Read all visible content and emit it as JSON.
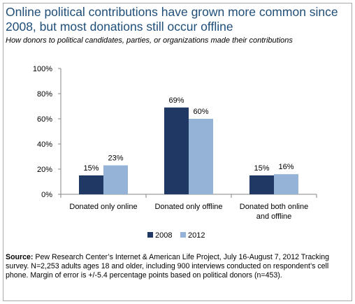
{
  "chart_data": {
    "type": "bar",
    "title": "Online political contributions have grown more common since 2008, but most donations still occur offline",
    "subtitle": "How donors to political candidates, parties, or organizations made their contributions",
    "categories": [
      "Donated only online",
      "Donated only offline",
      "Donated both online|and offline"
    ],
    "series": [
      {
        "name": "2008",
        "color": "#1f3864",
        "values": [
          15,
          69,
          15
        ]
      },
      {
        "name": "2012",
        "color": "#95b3d7",
        "values": [
          23,
          60,
          16
        ]
      }
    ],
    "value_suffix": "%",
    "ylim": [
      0,
      100
    ],
    "yticks": [
      0,
      20,
      40,
      60,
      80,
      100
    ],
    "ytick_labels": [
      "0%",
      "20%",
      "40%",
      "60%",
      "80%",
      "100%"
    ],
    "xlabel": "",
    "ylabel": "",
    "grid": false,
    "legend_position": "bottom"
  },
  "source": {
    "label": "Source:",
    "text": "Pew Research Center’s Internet & American Life Project, July 16-August 7, 2012 Tracking survey. N=2,253 adults ages 18 and older, including 900 interviews conducted on respondent’s cell phone. Margin of error is +/-5.4 percentage points based on political donors (n=453)."
  }
}
